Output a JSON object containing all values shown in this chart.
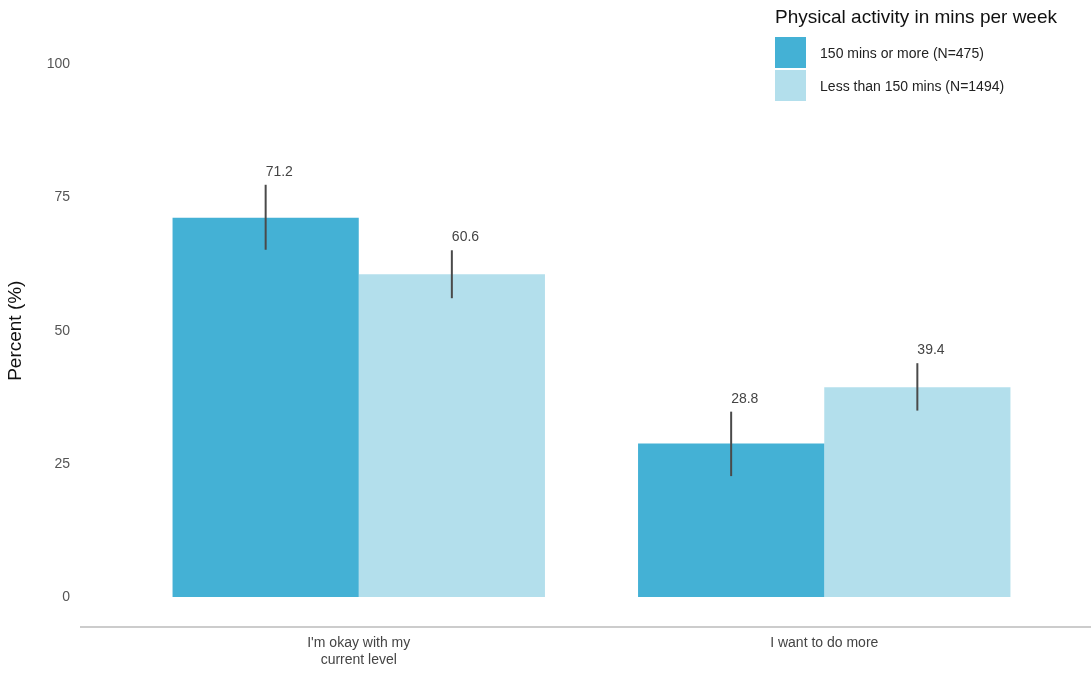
{
  "chart_data": {
    "type": "bar",
    "ylabel": "Percent (%)",
    "legend_title": "Physical activity in mins per week",
    "categories": [
      "I'm okay with my\ncurrent level",
      "I want to do more"
    ],
    "series": [
      {
        "name": "150 mins or more (N=475)",
        "color": "#44b1d5",
        "values": [
          71.2,
          28.8
        ],
        "errors": [
          [
            65.2,
            77.4
          ],
          [
            22.7,
            34.8
          ]
        ]
      },
      {
        "name": "Less than 150 mins (N=1494)",
        "color": "#b3dfec",
        "values": [
          60.6,
          39.4
        ],
        "errors": [
          [
            56.1,
            65.1
          ],
          [
            35.0,
            43.9
          ]
        ]
      }
    ],
    "ylim": [
      0,
      100
    ],
    "yticks": [
      0,
      25,
      50,
      75,
      100
    ],
    "grid": false,
    "legend": "top right",
    "data_labels": true
  }
}
